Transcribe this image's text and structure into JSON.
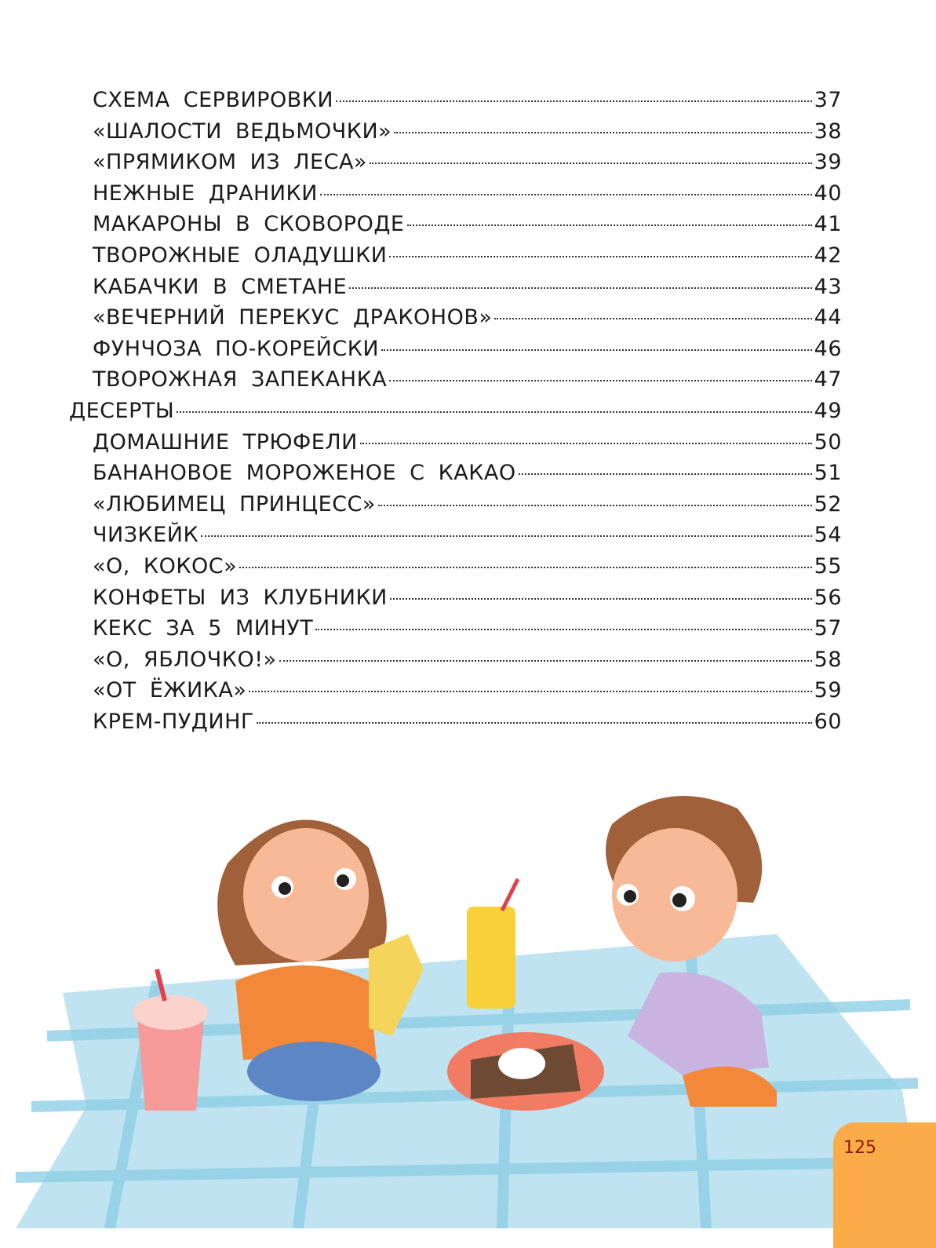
{
  "toc": [
    {
      "title": "СХЕМА СЕРВИРОВКИ",
      "page": "37",
      "level": 2
    },
    {
      "title": "«ШАЛОСТИ ВЕДЬМОЧКИ»",
      "page": "38",
      "level": 2
    },
    {
      "title": "«ПРЯМИКОМ ИЗ ЛЕСА»",
      "page": "39",
      "level": 2
    },
    {
      "title": "НЕЖНЫЕ ДРАНИКИ",
      "page": "40",
      "level": 2
    },
    {
      "title": "МАКАРОНЫ В СКОВОРОДЕ",
      "page": "41",
      "level": 2
    },
    {
      "title": "ТВОРОЖНЫЕ ОЛАДУШКИ",
      "page": "42",
      "level": 2
    },
    {
      "title": "КАБАЧКИ В СМЕТАНЕ",
      "page": "43",
      "level": 2
    },
    {
      "title": "«ВЕЧЕРНИЙ ПЕРЕКУС ДРАКОНОВ»",
      "page": "44",
      "level": 2
    },
    {
      "title": "ФУНЧОЗА ПО-КОРЕЙСКИ",
      "page": "46",
      "level": 2
    },
    {
      "title": "ТВОРОЖНАЯ ЗАПЕКАНКА",
      "page": "47",
      "level": 2
    },
    {
      "title": "ДЕСЕРТЫ",
      "page": "49",
      "level": 1
    },
    {
      "title": "ДОМАШНИЕ ТРЮФЕЛИ",
      "page": "50",
      "level": 2
    },
    {
      "title": "БАНАНОВОЕ МОРОЖЕНОЕ С КАКАО",
      "page": "51",
      "level": 2
    },
    {
      "title": "«ЛЮБИМЕЦ ПРИНЦЕСС»",
      "page": "52",
      "level": 2
    },
    {
      "title": "ЧИЗКЕЙК",
      "page": "54",
      "level": 2
    },
    {
      "title": "«О, КОКОС»",
      "page": "55",
      "level": 2
    },
    {
      "title": "КОНФЕТЫ ИЗ КЛУБНИКИ",
      "page": "56",
      "level": 2
    },
    {
      "title": "КЕКС ЗА 5 МИНУТ",
      "page": "57",
      "level": 2
    },
    {
      "title": "«О, ЯБЛОЧКО!»",
      "page": "58",
      "level": 2
    },
    {
      "title": "«ОТ ЁЖИКА»",
      "page": "59",
      "level": 2
    },
    {
      "title": "КРЕМ-ПУДИНГ",
      "page": "60",
      "level": 2
    }
  ],
  "page_number": "125",
  "colors": {
    "page_tab": "#fbab48",
    "page_number": "#8b1a10",
    "blanket": "#bfe3f0",
    "blanket_stripe": "#8fcfe6"
  }
}
